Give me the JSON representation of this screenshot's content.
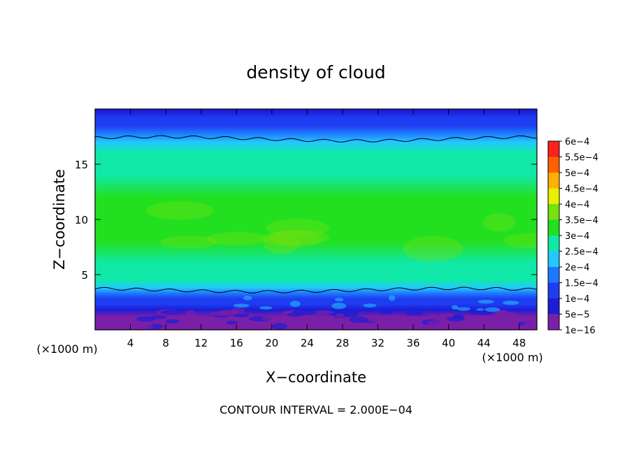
{
  "chart_data": {
    "type": "heatmap",
    "title": "density of cloud",
    "xlabel": "X−coordinate",
    "ylabel": "Z−coordinate",
    "x_unit_note": "(×1000 m)",
    "y_unit_note": "(×1000 m)",
    "footer": "CONTOUR INTERVAL = 2.000E−04",
    "xlim": [
      0,
      50
    ],
    "ylim": [
      0,
      20
    ],
    "x_ticks": [
      4,
      8,
      12,
      16,
      20,
      24,
      28,
      32,
      36,
      40,
      44,
      48
    ],
    "x_tick_labels": [
      "4",
      "8",
      "12",
      "16",
      "20",
      "24",
      "28",
      "32",
      "36",
      "40",
      "44",
      "48"
    ],
    "y_ticks": [
      5,
      10,
      15
    ],
    "y_tick_labels": [
      "5",
      "10",
      "15"
    ],
    "colorbar": {
      "levels": [
        1e-16,
        5e-05,
        0.0001,
        0.00015,
        0.0002,
        0.00025,
        0.0003,
        0.00035,
        0.0004,
        0.00045,
        0.0005,
        0.00055,
        0.0006
      ],
      "labels": [
        "1e−16",
        "5e−5",
        "1e−4",
        "1.5e−4",
        "2e−4",
        "2.5e−4",
        "3e−4",
        "3.5e−4",
        "4e−4",
        "4.5e−4",
        "5e−4",
        "5.5e−4",
        "6e−4"
      ],
      "colors": [
        "#7a1fa8",
        "#1c1cd6",
        "#1e3cf0",
        "#1e78ff",
        "#22c8ff",
        "#10e8a8",
        "#22e020",
        "#78e010",
        "#e8f000",
        "#ffb000",
        "#ff6000",
        "#ff2020",
        "#f88080"
      ]
    },
    "contour_levels": [
      0.0002
    ],
    "z_profile": {
      "z": [
        0.4,
        1.2,
        1.8,
        2.3,
        2.8,
        3.3,
        3.8,
        4.5,
        6.0,
        8.0,
        10.0,
        12.0,
        14.0,
        16.0,
        17.0,
        17.8,
        18.5,
        19.2,
        19.8
      ],
      "density": [
        1e-16,
        3e-05,
        8e-05,
        0.00011,
        0.00014,
        0.00018,
        0.00021,
        0.00026,
        0.00029,
        0.00031,
        0.00031,
        0.0003,
        0.00029,
        0.00027,
        0.00023,
        0.00018,
        0.00014,
        0.0001,
        6e-05
      ]
    }
  }
}
